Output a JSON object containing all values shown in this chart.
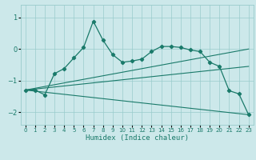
{
  "title": "",
  "xlabel": "Humidex (Indice chaleur)",
  "ylabel": "",
  "bg_color": "#cce8ea",
  "grid_color": "#99cccc",
  "line_color": "#1a7a6a",
  "xlim": [
    -0.5,
    23.5
  ],
  "ylim": [
    -2.4,
    1.4
  ],
  "yticks": [
    -2,
    -1,
    0,
    1
  ],
  "xticks": [
    0,
    1,
    2,
    3,
    4,
    5,
    6,
    7,
    8,
    9,
    10,
    11,
    12,
    13,
    14,
    15,
    16,
    17,
    18,
    19,
    20,
    21,
    22,
    23
  ],
  "line1_x": [
    0,
    1,
    2,
    3,
    4,
    5,
    6,
    7,
    8,
    9,
    10,
    11,
    12,
    13,
    14,
    15,
    16,
    17,
    18,
    19,
    20,
    21,
    22,
    23
  ],
  "line1_y": [
    -1.3,
    -1.3,
    -1.45,
    -0.78,
    -0.62,
    -0.28,
    0.05,
    0.88,
    0.28,
    -0.18,
    -0.42,
    -0.38,
    -0.32,
    -0.08,
    0.08,
    0.08,
    0.05,
    -0.03,
    -0.08,
    -0.42,
    -0.55,
    -1.32,
    -1.42,
    -2.08
  ],
  "line2_x": [
    0,
    23
  ],
  "line2_y": [
    -1.3,
    -0.55
  ],
  "line3_x": [
    0,
    23
  ],
  "line3_y": [
    -1.3,
    0.0
  ],
  "line4_x": [
    0,
    23
  ],
  "line4_y": [
    -1.3,
    -2.08
  ]
}
